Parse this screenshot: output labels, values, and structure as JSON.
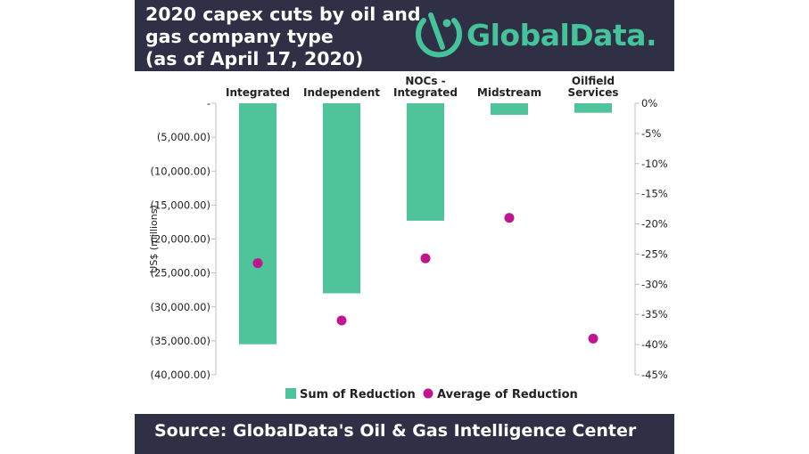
{
  "header": {
    "title_lines": [
      "2020 capex cuts by oil and",
      "gas company type",
      "(as of April 17, 2020)"
    ],
    "logo_text": "GlobalData."
  },
  "footer": {
    "source_text": "Source: GlobalData's Oil & Gas Intelligence Center"
  },
  "colors": {
    "header_bg": "#2f2f45",
    "bar": "#4fc39a",
    "dot": "#c0158e",
    "brand": "#45c39b"
  },
  "chart_data": {
    "type": "bar",
    "categories": [
      [
        "Integrated"
      ],
      [
        "Independent"
      ],
      [
        "NOCs -",
        "Integrated"
      ],
      [
        "Midstream"
      ],
      [
        "Oilfield",
        "Services"
      ]
    ],
    "series": [
      {
        "name": "Sum of Reduction",
        "type": "bar",
        "axis": "left",
        "values": [
          -35500,
          -28000,
          -17300,
          -1700,
          -1400
        ]
      },
      {
        "name": "Average of Reduction",
        "type": "scatter",
        "axis": "right",
        "values": [
          -26.5,
          -36,
          -25.7,
          -19,
          -39
        ]
      }
    ],
    "ylabel": "US$ (millions)",
    "ylim": [
      -40000,
      0
    ],
    "y_ticks": [
      0,
      -5000,
      -10000,
      -15000,
      -20000,
      -25000,
      -30000,
      -35000,
      -40000
    ],
    "y_tick_labels": [
      "-",
      "(5,000.00)",
      "(10,000.00)",
      "(15,000.00)",
      "(20,000.00)",
      "(25,000.00)",
      "(30,000.00)",
      "(35,000.00)",
      "(40,000.00)"
    ],
    "y2lim": [
      -45,
      0
    ],
    "y2_ticks": [
      0,
      -5,
      -10,
      -15,
      -20,
      -25,
      -30,
      -35,
      -40,
      -45
    ],
    "y2_tick_labels": [
      "0%",
      "-5%",
      "-10%",
      "-15%",
      "-20%",
      "-25%",
      "-30%",
      "-35%",
      "-40%",
      "-45%"
    ],
    "legend_position": "bottom",
    "grid": false
  }
}
